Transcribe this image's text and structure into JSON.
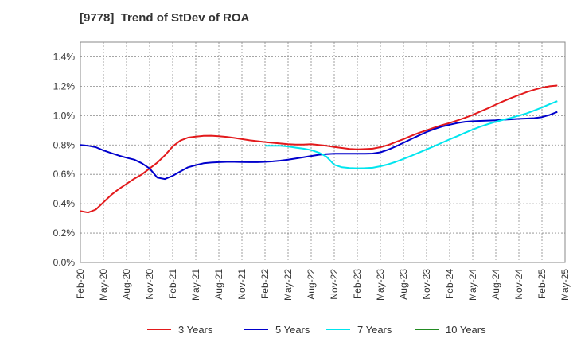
{
  "chart_data": {
    "type": "line",
    "title": "[9778]  Trend of StDev of ROA",
    "xlabel": "",
    "ylabel": "",
    "ylim": [
      0,
      1.5
    ],
    "y_ticks": [
      "0.0%",
      "0.2%",
      "0.4%",
      "0.6%",
      "0.8%",
      "1.0%",
      "1.2%",
      "1.4%"
    ],
    "y_tick_values": [
      0,
      0.2,
      0.4,
      0.6,
      0.8,
      1.0,
      1.2,
      1.4
    ],
    "x_ticks": [
      "Feb-20",
      "May-20",
      "Aug-20",
      "Nov-20",
      "Feb-21",
      "May-21",
      "Aug-21",
      "Nov-21",
      "Feb-22",
      "May-22",
      "Aug-22",
      "Nov-22",
      "Feb-23",
      "May-23",
      "Aug-23",
      "Nov-23",
      "Feb-24",
      "May-24",
      "Aug-24",
      "Nov-24",
      "Feb-25",
      "May-25"
    ],
    "grid": true,
    "legend_position": "bottom",
    "series": [
      {
        "name": "3 Years",
        "color": "#e31a1c",
        "points": [
          [
            "Feb-20",
            0.35
          ],
          [
            "Mar-20",
            0.34
          ],
          [
            "Apr-20",
            0.36
          ],
          [
            "May-20",
            0.41
          ],
          [
            "Jun-20",
            0.46
          ],
          [
            "Jul-20",
            0.5
          ],
          [
            "Aug-20",
            0.535
          ],
          [
            "Sep-20",
            0.57
          ],
          [
            "Oct-20",
            0.6
          ],
          [
            "Nov-20",
            0.64
          ],
          [
            "Dec-20",
            0.68
          ],
          [
            "Jan-21",
            0.73
          ],
          [
            "Feb-21",
            0.79
          ],
          [
            "Mar-21",
            0.83
          ],
          [
            "Apr-21",
            0.85
          ],
          [
            "May-21",
            0.857
          ],
          [
            "Jun-21",
            0.862
          ],
          [
            "Jul-21",
            0.863
          ],
          [
            "Aug-21",
            0.86
          ],
          [
            "Sep-21",
            0.855
          ],
          [
            "Oct-21",
            0.848
          ],
          [
            "Nov-21",
            0.84
          ],
          [
            "Dec-21",
            0.832
          ],
          [
            "Jan-22",
            0.826
          ],
          [
            "Feb-22",
            0.82
          ],
          [
            "Mar-22",
            0.815
          ],
          [
            "Apr-22",
            0.81
          ],
          [
            "May-22",
            0.805
          ],
          [
            "Jun-22",
            0.803
          ],
          [
            "Jul-22",
            0.803
          ],
          [
            "Aug-22",
            0.805
          ],
          [
            "Sep-22",
            0.8
          ],
          [
            "Oct-22",
            0.795
          ],
          [
            "Nov-22",
            0.787
          ],
          [
            "Dec-22",
            0.78
          ],
          [
            "Jan-23",
            0.773
          ],
          [
            "Feb-23",
            0.77
          ],
          [
            "Mar-23",
            0.772
          ],
          [
            "Apr-23",
            0.775
          ],
          [
            "May-23",
            0.785
          ],
          [
            "Jun-23",
            0.8
          ],
          [
            "Jul-23",
            0.82
          ],
          [
            "Aug-23",
            0.84
          ],
          [
            "Sep-23",
            0.862
          ],
          [
            "Oct-23",
            0.882
          ],
          [
            "Nov-23",
            0.9
          ],
          [
            "Dec-23",
            0.918
          ],
          [
            "Jan-24",
            0.935
          ],
          [
            "Feb-24",
            0.95
          ],
          [
            "Mar-24",
            0.967
          ],
          [
            "Apr-24",
            0.985
          ],
          [
            "May-24",
            1.005
          ],
          [
            "Jun-24",
            1.028
          ],
          [
            "Jul-24",
            1.05
          ],
          [
            "Aug-24",
            1.075
          ],
          [
            "Sep-24",
            1.098
          ],
          [
            "Oct-24",
            1.12
          ],
          [
            "Nov-24",
            1.14
          ],
          [
            "Dec-24",
            1.16
          ],
          [
            "Jan-25",
            1.176
          ],
          [
            "Feb-25",
            1.19
          ],
          [
            "Mar-25",
            1.2
          ],
          [
            "Apr-25",
            1.205
          ]
        ]
      },
      {
        "name": "5 Years",
        "color": "#0000cc",
        "points": [
          [
            "Feb-20",
            0.8
          ],
          [
            "Mar-20",
            0.795
          ],
          [
            "Apr-20",
            0.785
          ],
          [
            "May-20",
            0.763
          ],
          [
            "Jun-20",
            0.745
          ],
          [
            "Jul-20",
            0.728
          ],
          [
            "Aug-20",
            0.713
          ],
          [
            "Sep-20",
            0.7
          ],
          [
            "Oct-20",
            0.675
          ],
          [
            "Nov-20",
            0.64
          ],
          [
            "Dec-20",
            0.578
          ],
          [
            "Jan-21",
            0.568
          ],
          [
            "Feb-21",
            0.59
          ],
          [
            "Mar-21",
            0.62
          ],
          [
            "Apr-21",
            0.648
          ],
          [
            "May-21",
            0.663
          ],
          [
            "Jun-21",
            0.675
          ],
          [
            "Jul-21",
            0.68
          ],
          [
            "Aug-21",
            0.683
          ],
          [
            "Sep-21",
            0.685
          ],
          [
            "Oct-21",
            0.685
          ],
          [
            "Nov-21",
            0.684
          ],
          [
            "Dec-21",
            0.683
          ],
          [
            "Jan-22",
            0.683
          ],
          [
            "Feb-22",
            0.685
          ],
          [
            "Mar-22",
            0.688
          ],
          [
            "Apr-22",
            0.693
          ],
          [
            "May-22",
            0.7
          ],
          [
            "Jun-22",
            0.708
          ],
          [
            "Jul-22",
            0.716
          ],
          [
            "Aug-22",
            0.725
          ],
          [
            "Sep-22",
            0.733
          ],
          [
            "Oct-22",
            0.738
          ],
          [
            "Nov-22",
            0.74
          ],
          [
            "Dec-22",
            0.74
          ],
          [
            "Jan-23",
            0.74
          ],
          [
            "Feb-23",
            0.74
          ],
          [
            "Mar-23",
            0.74
          ],
          [
            "Apr-23",
            0.742
          ],
          [
            "May-23",
            0.75
          ],
          [
            "Jun-23",
            0.768
          ],
          [
            "Jul-23",
            0.79
          ],
          [
            "Aug-23",
            0.815
          ],
          [
            "Sep-23",
            0.84
          ],
          [
            "Oct-23",
            0.865
          ],
          [
            "Nov-23",
            0.888
          ],
          [
            "Dec-23",
            0.908
          ],
          [
            "Jan-24",
            0.925
          ],
          [
            "Feb-24",
            0.938
          ],
          [
            "Mar-24",
            0.95
          ],
          [
            "Apr-24",
            0.958
          ],
          [
            "May-24",
            0.962
          ],
          [
            "Jun-24",
            0.964
          ],
          [
            "Jul-24",
            0.966
          ],
          [
            "Aug-24",
            0.968
          ],
          [
            "Sep-24",
            0.972
          ],
          [
            "Oct-24",
            0.975
          ],
          [
            "Nov-24",
            0.978
          ],
          [
            "Dec-24",
            0.98
          ],
          [
            "Jan-25",
            0.983
          ],
          [
            "Feb-25",
            0.99
          ],
          [
            "Mar-25",
            1.005
          ],
          [
            "Apr-25",
            1.025
          ]
        ]
      },
      {
        "name": "7 Years",
        "color": "#00e5ee",
        "points": [
          [
            "Feb-22",
            0.795
          ],
          [
            "Mar-22",
            0.795
          ],
          [
            "Apr-22",
            0.795
          ],
          [
            "May-22",
            0.79
          ],
          [
            "Jun-22",
            0.782
          ],
          [
            "Jul-22",
            0.775
          ],
          [
            "Aug-22",
            0.765
          ],
          [
            "Sep-22",
            0.748
          ],
          [
            "Oct-22",
            0.72
          ],
          [
            "Nov-22",
            0.665
          ],
          [
            "Dec-22",
            0.648
          ],
          [
            "Jan-23",
            0.643
          ],
          [
            "Feb-23",
            0.641
          ],
          [
            "Mar-23",
            0.642
          ],
          [
            "Apr-23",
            0.645
          ],
          [
            "May-23",
            0.655
          ],
          [
            "Jun-23",
            0.668
          ],
          [
            "Jul-23",
            0.685
          ],
          [
            "Aug-23",
            0.705
          ],
          [
            "Sep-23",
            0.726
          ],
          [
            "Oct-23",
            0.748
          ],
          [
            "Nov-23",
            0.77
          ],
          [
            "Dec-23",
            0.792
          ],
          [
            "Jan-24",
            0.815
          ],
          [
            "Feb-24",
            0.838
          ],
          [
            "Mar-24",
            0.86
          ],
          [
            "Apr-24",
            0.883
          ],
          [
            "May-24",
            0.905
          ],
          [
            "Jun-24",
            0.925
          ],
          [
            "Jul-24",
            0.942
          ],
          [
            "Aug-24",
            0.958
          ],
          [
            "Sep-24",
            0.972
          ],
          [
            "Oct-24",
            0.985
          ],
          [
            "Nov-24",
            1.0
          ],
          [
            "Dec-24",
            1.015
          ],
          [
            "Jan-25",
            1.035
          ],
          [
            "Feb-25",
            1.055
          ],
          [
            "Mar-25",
            1.078
          ],
          [
            "Apr-25",
            1.098
          ]
        ]
      },
      {
        "name": "10 Years",
        "color": "#228b22",
        "points": []
      }
    ]
  }
}
